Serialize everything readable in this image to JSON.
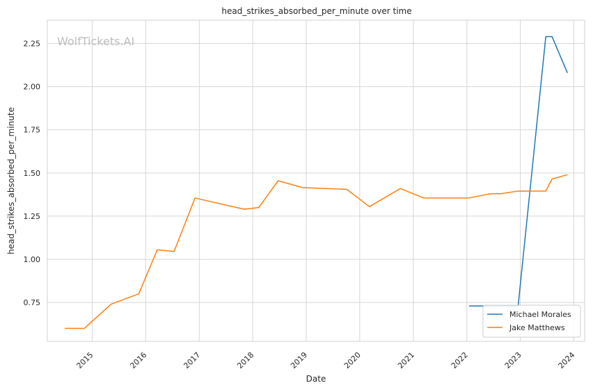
{
  "chart_data": {
    "type": "line",
    "title": "head_strikes_absorbed_per_minute over time",
    "xlabel": "Date",
    "ylabel": "head_strikes_absorbed_per_minute",
    "watermark": "WolfTickets.AI",
    "xlim": [
      "2014-03-01",
      "2024-03-15"
    ],
    "ylim": [
      0.525,
      2.385
    ],
    "x_ticks": [
      "2015",
      "2016",
      "2017",
      "2018",
      "2019",
      "2020",
      "2021",
      "2022",
      "2023",
      "2024"
    ],
    "y_ticks": [
      "0.75",
      "1.00",
      "1.25",
      "1.50",
      "1.75",
      "2.00",
      "2.25"
    ],
    "y_tick_values": [
      0.75,
      1.0,
      1.25,
      1.5,
      1.75,
      2.0,
      2.25
    ],
    "grid": true,
    "legend_position": "lower-right",
    "series": [
      {
        "name": "Michael Morales",
        "color": "#1f77b4",
        "points": [
          [
            "2022-01-15",
            0.73
          ],
          [
            "2022-12-17",
            0.73
          ],
          [
            "2023-06-24",
            2.29
          ],
          [
            "2023-08-05",
            2.29
          ],
          [
            "2023-11-18",
            2.08
          ]
        ]
      },
      {
        "name": "Jake Matthews",
        "color": "#ff7f0e",
        "points": [
          [
            "2014-06-28",
            0.6
          ],
          [
            "2014-11-08",
            0.6
          ],
          [
            "2015-05-10",
            0.74
          ],
          [
            "2015-11-15",
            0.8
          ],
          [
            "2016-03-20",
            1.055
          ],
          [
            "2016-07-13",
            1.045
          ],
          [
            "2016-12-03",
            1.355
          ],
          [
            "2017-11-04",
            1.29
          ],
          [
            "2018-02-11",
            1.3
          ],
          [
            "2018-06-23",
            1.455
          ],
          [
            "2018-12-08",
            1.415
          ],
          [
            "2019-10-05",
            1.405
          ],
          [
            "2020-03-07",
            1.305
          ],
          [
            "2020-10-04",
            1.41
          ],
          [
            "2021-03-13",
            1.355
          ],
          [
            "2022-01-15",
            1.355
          ],
          [
            "2022-06-11",
            1.38
          ],
          [
            "2022-08-20",
            1.38
          ],
          [
            "2022-12-17",
            1.395
          ],
          [
            "2023-06-24",
            1.395
          ],
          [
            "2023-08-05",
            1.465
          ],
          [
            "2023-11-18",
            1.49
          ]
        ]
      }
    ]
  }
}
